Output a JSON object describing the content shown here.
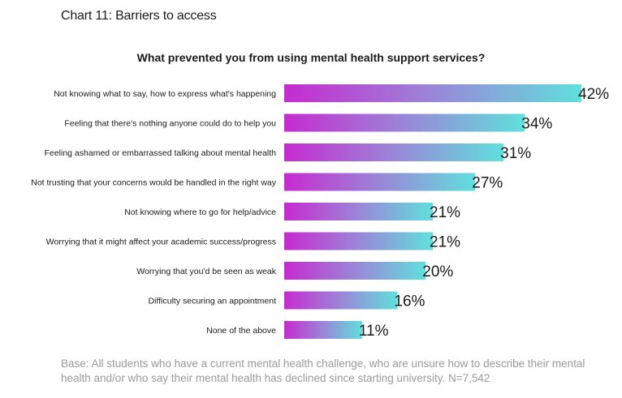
{
  "title": "Chart 11: Barriers to access",
  "subtitle": "What prevented you from using mental health support services?",
  "base_note": "Base: All students who have a current mental health challenge, who are unsure how to describe their mental health and/or who say their mental health has declined since starting university. N=7,542",
  "colors": {
    "gradient_start": "#c62bd0",
    "gradient_mid": "#9a86d8",
    "gradient_end": "#5fe0dc",
    "text": "#1a1a1a",
    "note": "#9a9a9a"
  },
  "chart_data": {
    "type": "bar",
    "orientation": "horizontal",
    "title": "What prevented you from using mental health support services?",
    "categories": [
      "Not knowing what to say, how to express what's happening",
      "Feeling that there's nothing anyone could do to help you",
      "Feeling ashamed or embarrassed talking about mental health",
      "Not trusting that your concerns would be handled in the right way",
      "Not knowing where to go for help/advice",
      "Worrying that it might affect your academic success/progress",
      "Worrying that you'd be seen as weak",
      "Difficulty securing an appointment",
      "None of the above"
    ],
    "values": [
      42,
      34,
      31,
      27,
      21,
      21,
      20,
      16,
      11
    ],
    "labels": [
      "42%",
      "34%",
      "31%",
      "27%",
      "21%",
      "21%",
      "20%",
      "16%",
      "11%"
    ],
    "xlim": [
      0,
      42
    ],
    "grid": false,
    "legend": "none"
  }
}
